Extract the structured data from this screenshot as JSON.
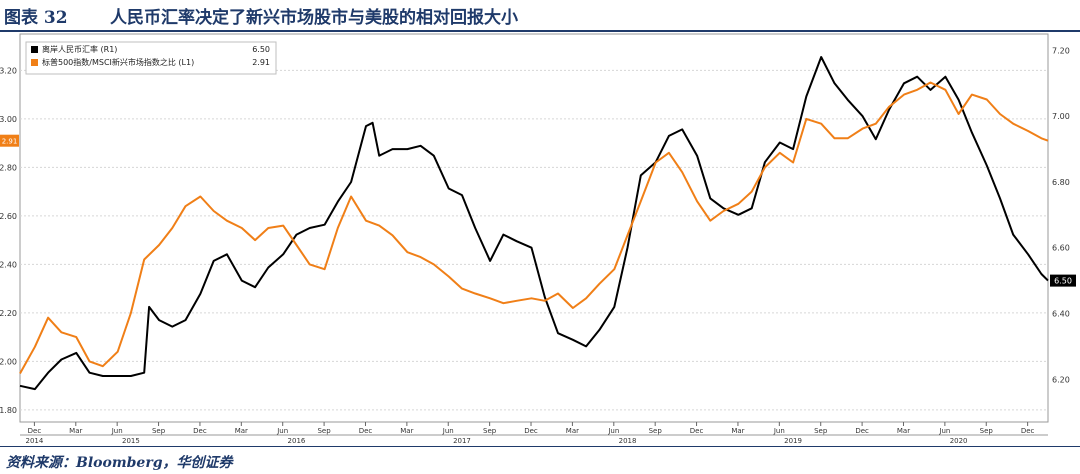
{
  "figure": {
    "label": "图表 32",
    "title": "人民币汇率决定了新兴市场股市与美股的相对回报大小",
    "source": "资料来源：Bloomberg，华创证券"
  },
  "chart_data": {
    "type": "line",
    "left_axis": {
      "ylim": [
        1.75,
        3.35
      ],
      "ticks": [
        "1.80",
        "2.00",
        "2.20",
        "2.40",
        "2.60",
        "2.80",
        "3.00",
        "3.20"
      ]
    },
    "right_axis": {
      "ylim": [
        6.07,
        7.25
      ],
      "ticks": [
        "6.20",
        "6.40",
        "6.60",
        "6.80",
        "7.00",
        "7.20"
      ]
    },
    "x_range": [
      2014.83,
      2021.04
    ],
    "month_ticks": [
      {
        "t": 2014.917,
        "label": "Dec"
      },
      {
        "t": 2015.167,
        "label": "Mar"
      },
      {
        "t": 2015.417,
        "label": "Jun"
      },
      {
        "t": 2015.667,
        "label": "Sep"
      },
      {
        "t": 2015.917,
        "label": "Dec"
      },
      {
        "t": 2016.167,
        "label": "Mar"
      },
      {
        "t": 2016.417,
        "label": "Jun"
      },
      {
        "t": 2016.667,
        "label": "Sep"
      },
      {
        "t": 2016.917,
        "label": "Dec"
      },
      {
        "t": 2017.167,
        "label": "Mar"
      },
      {
        "t": 2017.417,
        "label": "Jun"
      },
      {
        "t": 2017.667,
        "label": "Sep"
      },
      {
        "t": 2017.917,
        "label": "Dec"
      },
      {
        "t": 2018.167,
        "label": "Mar"
      },
      {
        "t": 2018.417,
        "label": "Jun"
      },
      {
        "t": 2018.667,
        "label": "Sep"
      },
      {
        "t": 2018.917,
        "label": "Dec"
      },
      {
        "t": 2019.167,
        "label": "Mar"
      },
      {
        "t": 2019.417,
        "label": "Jun"
      },
      {
        "t": 2019.667,
        "label": "Sep"
      },
      {
        "t": 2019.917,
        "label": "Dec"
      },
      {
        "t": 2020.167,
        "label": "Mar"
      },
      {
        "t": 2020.417,
        "label": "Jun"
      },
      {
        "t": 2020.667,
        "label": "Sep"
      },
      {
        "t": 2020.917,
        "label": "Dec"
      }
    ],
    "years": [
      {
        "t": 2014.917,
        "label": "2014"
      },
      {
        "t": 2015.5,
        "label": "2015"
      },
      {
        "t": 2016.5,
        "label": "2016"
      },
      {
        "t": 2017.5,
        "label": "2017"
      },
      {
        "t": 2018.5,
        "label": "2018"
      },
      {
        "t": 2019.5,
        "label": "2019"
      },
      {
        "t": 2020.5,
        "label": "2020"
      }
    ],
    "legend_position": "top-left",
    "series": [
      {
        "name": "离岸人民币汇率 (R1)",
        "last_value": "6.50",
        "axis": "right",
        "color": "#000000",
        "points": [
          [
            2014.83,
            6.18
          ],
          [
            2014.92,
            6.17
          ],
          [
            2015.0,
            6.22
          ],
          [
            2015.08,
            6.26
          ],
          [
            2015.17,
            6.28
          ],
          [
            2015.25,
            6.22
          ],
          [
            2015.33,
            6.21
          ],
          [
            2015.42,
            6.21
          ],
          [
            2015.5,
            6.21
          ],
          [
            2015.58,
            6.22
          ],
          [
            2015.61,
            6.42
          ],
          [
            2015.67,
            6.38
          ],
          [
            2015.75,
            6.36
          ],
          [
            2015.83,
            6.38
          ],
          [
            2015.92,
            6.46
          ],
          [
            2016.0,
            6.56
          ],
          [
            2016.08,
            6.58
          ],
          [
            2016.17,
            6.5
          ],
          [
            2016.25,
            6.48
          ],
          [
            2016.33,
            6.54
          ],
          [
            2016.42,
            6.58
          ],
          [
            2016.5,
            6.64
          ],
          [
            2016.58,
            6.66
          ],
          [
            2016.67,
            6.67
          ],
          [
            2016.75,
            6.74
          ],
          [
            2016.83,
            6.8
          ],
          [
            2016.92,
            6.97
          ],
          [
            2016.96,
            6.98
          ],
          [
            2017.0,
            6.88
          ],
          [
            2017.08,
            6.9
          ],
          [
            2017.17,
            6.9
          ],
          [
            2017.25,
            6.91
          ],
          [
            2017.33,
            6.88
          ],
          [
            2017.42,
            6.78
          ],
          [
            2017.5,
            6.76
          ],
          [
            2017.58,
            6.66
          ],
          [
            2017.67,
            6.56
          ],
          [
            2017.75,
            6.64
          ],
          [
            2017.83,
            6.62
          ],
          [
            2017.92,
            6.6
          ],
          [
            2018.0,
            6.45
          ],
          [
            2018.08,
            6.34
          ],
          [
            2018.17,
            6.32
          ],
          [
            2018.25,
            6.3
          ],
          [
            2018.33,
            6.35
          ],
          [
            2018.42,
            6.42
          ],
          [
            2018.5,
            6.6
          ],
          [
            2018.58,
            6.82
          ],
          [
            2018.67,
            6.86
          ],
          [
            2018.75,
            6.94
          ],
          [
            2018.83,
            6.96
          ],
          [
            2018.92,
            6.88
          ],
          [
            2019.0,
            6.75
          ],
          [
            2019.08,
            6.72
          ],
          [
            2019.17,
            6.7
          ],
          [
            2019.25,
            6.72
          ],
          [
            2019.33,
            6.86
          ],
          [
            2019.42,
            6.92
          ],
          [
            2019.5,
            6.9
          ],
          [
            2019.58,
            7.06
          ],
          [
            2019.67,
            7.18
          ],
          [
            2019.75,
            7.1
          ],
          [
            2019.83,
            7.05
          ],
          [
            2019.92,
            7.0
          ],
          [
            2020.0,
            6.93
          ],
          [
            2020.08,
            7.02
          ],
          [
            2020.17,
            7.1
          ],
          [
            2020.25,
            7.12
          ],
          [
            2020.33,
            7.08
          ],
          [
            2020.42,
            7.12
          ],
          [
            2020.5,
            7.05
          ],
          [
            2020.58,
            6.95
          ],
          [
            2020.67,
            6.85
          ],
          [
            2020.75,
            6.75
          ],
          [
            2020.83,
            6.64
          ],
          [
            2020.92,
            6.58
          ],
          [
            2021.0,
            6.52
          ],
          [
            2021.04,
            6.5
          ]
        ]
      },
      {
        "name": "标普500指数/MSCI新兴市场指数之比 (L1)",
        "last_value": "2.91",
        "axis": "left",
        "color": "#f07f17",
        "points": [
          [
            2014.83,
            1.95
          ],
          [
            2014.92,
            2.06
          ],
          [
            2015.0,
            2.18
          ],
          [
            2015.08,
            2.12
          ],
          [
            2015.17,
            2.1
          ],
          [
            2015.25,
            2.0
          ],
          [
            2015.33,
            1.98
          ],
          [
            2015.42,
            2.04
          ],
          [
            2015.5,
            2.2
          ],
          [
            2015.58,
            2.42
          ],
          [
            2015.67,
            2.48
          ],
          [
            2015.75,
            2.55
          ],
          [
            2015.83,
            2.64
          ],
          [
            2015.92,
            2.68
          ],
          [
            2016.0,
            2.62
          ],
          [
            2016.08,
            2.58
          ],
          [
            2016.17,
            2.55
          ],
          [
            2016.25,
            2.5
          ],
          [
            2016.33,
            2.55
          ],
          [
            2016.42,
            2.56
          ],
          [
            2016.5,
            2.48
          ],
          [
            2016.58,
            2.4
          ],
          [
            2016.67,
            2.38
          ],
          [
            2016.75,
            2.55
          ],
          [
            2016.83,
            2.68
          ],
          [
            2016.92,
            2.58
          ],
          [
            2017.0,
            2.56
          ],
          [
            2017.08,
            2.52
          ],
          [
            2017.17,
            2.45
          ],
          [
            2017.25,
            2.43
          ],
          [
            2017.33,
            2.4
          ],
          [
            2017.42,
            2.35
          ],
          [
            2017.5,
            2.3
          ],
          [
            2017.58,
            2.28
          ],
          [
            2017.67,
            2.26
          ],
          [
            2017.75,
            2.24
          ],
          [
            2017.83,
            2.25
          ],
          [
            2017.92,
            2.26
          ],
          [
            2018.0,
            2.25
          ],
          [
            2018.08,
            2.28
          ],
          [
            2018.17,
            2.22
          ],
          [
            2018.25,
            2.26
          ],
          [
            2018.33,
            2.32
          ],
          [
            2018.42,
            2.38
          ],
          [
            2018.5,
            2.52
          ],
          [
            2018.58,
            2.66
          ],
          [
            2018.67,
            2.82
          ],
          [
            2018.75,
            2.86
          ],
          [
            2018.83,
            2.78
          ],
          [
            2018.92,
            2.66
          ],
          [
            2019.0,
            2.58
          ],
          [
            2019.08,
            2.62
          ],
          [
            2019.17,
            2.65
          ],
          [
            2019.25,
            2.7
          ],
          [
            2019.33,
            2.8
          ],
          [
            2019.42,
            2.86
          ],
          [
            2019.5,
            2.82
          ],
          [
            2019.58,
            3.0
          ],
          [
            2019.67,
            2.98
          ],
          [
            2019.75,
            2.92
          ],
          [
            2019.83,
            2.92
          ],
          [
            2019.92,
            2.96
          ],
          [
            2020.0,
            2.98
          ],
          [
            2020.08,
            3.05
          ],
          [
            2020.17,
            3.1
          ],
          [
            2020.25,
            3.12
          ],
          [
            2020.33,
            3.15
          ],
          [
            2020.42,
            3.12
          ],
          [
            2020.5,
            3.02
          ],
          [
            2020.58,
            3.1
          ],
          [
            2020.67,
            3.08
          ],
          [
            2020.75,
            3.02
          ],
          [
            2020.83,
            2.98
          ],
          [
            2020.92,
            2.95
          ],
          [
            2021.0,
            2.92
          ],
          [
            2021.04,
            2.91
          ]
        ]
      }
    ]
  }
}
